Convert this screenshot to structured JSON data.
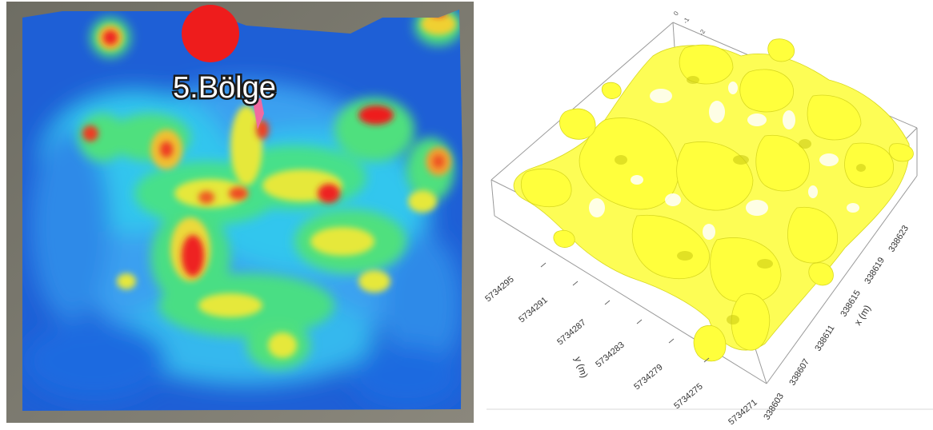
{
  "left_map": {
    "label": "5.Bölge"
  },
  "right_plot": {
    "y_axis_title": "y (m)",
    "x_axis_title": "x (m)",
    "y_ticks": [
      "5734295",
      "5734291",
      "5734287",
      "5734283",
      "5734279",
      "5734275",
      "5734271"
    ],
    "x_ticks": [
      "338603",
      "338607",
      "338611",
      "338615",
      "338619",
      "338623"
    ],
    "corner_ticks": [
      "0",
      "-1",
      "-2"
    ],
    "isosurface_color": "#ffff3c"
  }
}
